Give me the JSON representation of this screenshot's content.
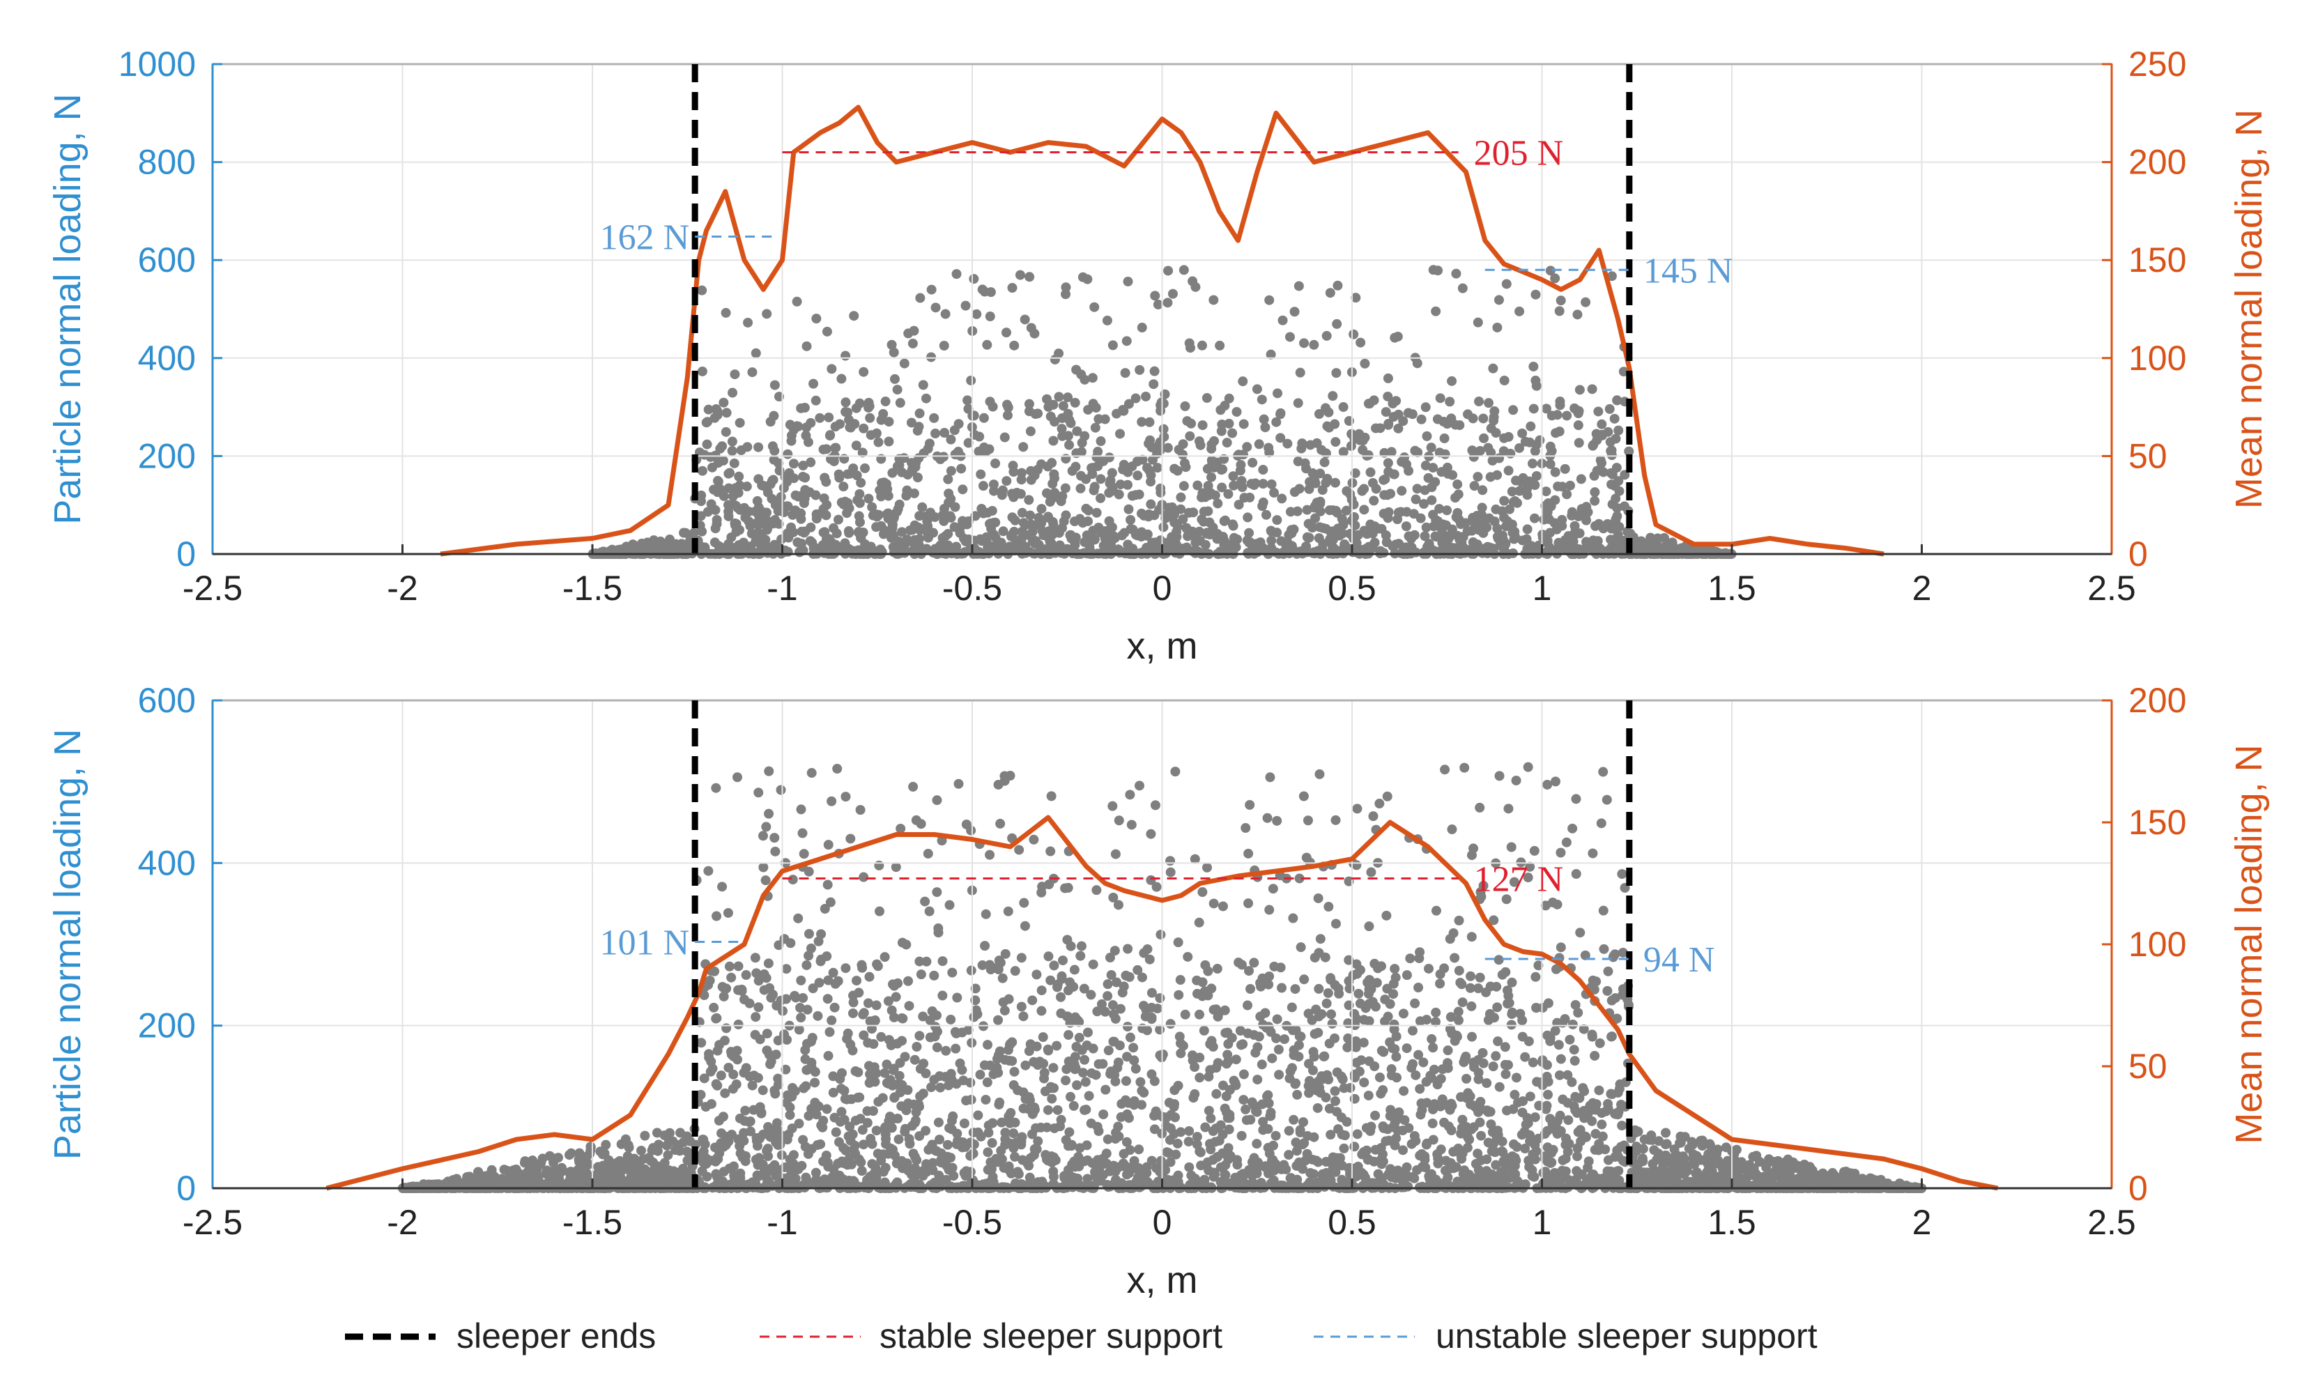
{
  "colors": {
    "left_axis": "#2f8fd0",
    "right_axis": "#d95319",
    "scatter": "#7f7f7f",
    "stable": "#e0202e",
    "unstable": "#5b9bd5",
    "sleeper": "#000000"
  },
  "legend": {
    "sleeper_ends": "sleeper ends",
    "stable": "stable sleeper support",
    "unstable": "unstable sleeper support"
  },
  "chart_data": [
    {
      "type": "line+scatter",
      "xlabel": "x, m",
      "ylabel_left": "Particle normal loading, N",
      "ylabel_right": "Mean normal loading, N",
      "xlim": [
        -2.5,
        2.5
      ],
      "xticks": [
        "-2.5",
        "-2",
        "-1.5",
        "-1",
        "-0.5",
        "0",
        "0.5",
        "1",
        "1.5",
        "2",
        "2.5"
      ],
      "ylim_left": [
        0,
        1000
      ],
      "yticks_left": [
        "0",
        "200",
        "400",
        "600",
        "800",
        "1000"
      ],
      "ylim_right": [
        0,
        250
      ],
      "yticks_right": [
        "0",
        "50",
        "100",
        "150",
        "200",
        "250"
      ],
      "sleeper_ends": [
        -1.23,
        1.23
      ],
      "stable": {
        "value": 205,
        "x": [
          -1.0,
          0.78
        ],
        "label": "205 N"
      },
      "unstable_left": {
        "value": 162,
        "x": [
          -1.23,
          -1.02
        ],
        "label": "162 N"
      },
      "unstable_right": {
        "value": 145,
        "x": [
          0.85,
          1.23
        ],
        "label": "145 N"
      },
      "mean_curve": {
        "x": [
          -1.9,
          -1.7,
          -1.5,
          -1.4,
          -1.3,
          -1.25,
          -1.22,
          -1.2,
          -1.15,
          -1.1,
          -1.05,
          -1.0,
          -0.97,
          -0.9,
          -0.85,
          -0.8,
          -0.75,
          -0.7,
          -0.6,
          -0.5,
          -0.4,
          -0.3,
          -0.2,
          -0.1,
          -0.05,
          0.0,
          0.05,
          0.1,
          0.15,
          0.2,
          0.25,
          0.3,
          0.4,
          0.5,
          0.6,
          0.7,
          0.75,
          0.8,
          0.85,
          0.9,
          1.0,
          1.05,
          1.1,
          1.15,
          1.2,
          1.23,
          1.27,
          1.3,
          1.4,
          1.5,
          1.6,
          1.7,
          1.8,
          1.9
        ],
        "y": [
          0,
          5,
          8,
          12,
          25,
          90,
          150,
          165,
          185,
          150,
          135,
          150,
          205,
          215,
          220,
          228,
          210,
          200,
          205,
          210,
          205,
          210,
          208,
          198,
          210,
          222,
          215,
          200,
          175,
          160,
          195,
          225,
          200,
          205,
          210,
          215,
          205,
          195,
          160,
          148,
          140,
          135,
          140,
          155,
          120,
          95,
          40,
          15,
          5,
          5,
          8,
          5,
          3,
          0
        ]
      },
      "scatter": {
        "n_points": 2400,
        "x_range": [
          -1.5,
          1.5
        ],
        "max_inside": 580,
        "max_outside": 50
      }
    },
    {
      "type": "line+scatter",
      "xlabel": "x, m",
      "ylabel_left": "Particle normal loading, N",
      "ylabel_right": "Mean normal loading, N",
      "xlim": [
        -2.5,
        2.5
      ],
      "xticks": [
        "-2.5",
        "-2",
        "-1.5",
        "-1",
        "-0.5",
        "0",
        "0.5",
        "1",
        "1.5",
        "2",
        "2.5"
      ],
      "ylim_left": [
        0,
        600
      ],
      "yticks_left": [
        "0",
        "200",
        "400",
        "600"
      ],
      "ylim_right": [
        0,
        200
      ],
      "yticks_right": [
        "0",
        "50",
        "100",
        "150",
        "200"
      ],
      "sleeper_ends": [
        -1.23,
        1.23
      ],
      "stable": {
        "value": 127,
        "x": [
          -1.0,
          0.78
        ],
        "label": "127 N"
      },
      "unstable_left": {
        "value": 101,
        "x": [
          -1.23,
          -1.1
        ],
        "label": "101 N"
      },
      "unstable_right": {
        "value": 94,
        "x": [
          0.85,
          1.23
        ],
        "label": "94 N"
      },
      "mean_curve": {
        "x": [
          -2.2,
          -2.0,
          -1.8,
          -1.7,
          -1.6,
          -1.5,
          -1.4,
          -1.3,
          -1.25,
          -1.22,
          -1.2,
          -1.15,
          -1.1,
          -1.05,
          -1.0,
          -0.9,
          -0.7,
          -0.6,
          -0.5,
          -0.4,
          -0.3,
          -0.2,
          -0.15,
          -0.1,
          0.0,
          0.05,
          0.1,
          0.2,
          0.3,
          0.4,
          0.5,
          0.6,
          0.65,
          0.7,
          0.8,
          0.85,
          0.9,
          0.95,
          1.0,
          1.05,
          1.1,
          1.15,
          1.2,
          1.23,
          1.3,
          1.4,
          1.5,
          1.6,
          1.7,
          1.8,
          1.9,
          2.0,
          2.1,
          2.2
        ],
        "y": [
          0,
          8,
          15,
          20,
          22,
          20,
          30,
          55,
          70,
          80,
          90,
          95,
          100,
          120,
          130,
          135,
          145,
          145,
          143,
          140,
          152,
          132,
          125,
          122,
          118,
          120,
          125,
          128,
          130,
          132,
          135,
          150,
          145,
          140,
          125,
          110,
          100,
          97,
          96,
          92,
          85,
          75,
          65,
          55,
          40,
          30,
          20,
          18,
          16,
          14,
          12,
          8,
          3,
          0
        ]
      },
      "scatter": {
        "n_points": 4200,
        "x_range": [
          -2.0,
          2.0
        ],
        "max_inside": 520,
        "max_outside": 80
      }
    }
  ]
}
